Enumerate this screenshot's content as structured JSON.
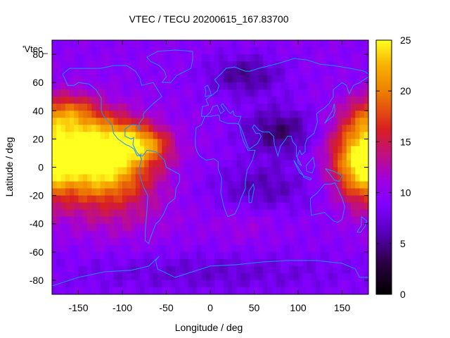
{
  "chart_data": {
    "type": "heatmap",
    "title": "VTEC / TECU 20200615_167.83700",
    "xlabel": "Longitude / deg",
    "ylabel": "Latitude / deg",
    "xlim": [
      -180,
      180
    ],
    "ylim": [
      -90,
      90
    ],
    "xticks": [
      -150,
      -100,
      -50,
      0,
      50,
      100,
      150
    ],
    "yticks": [
      -80,
      -60,
      -40,
      -20,
      0,
      20,
      40,
      60,
      80
    ],
    "colorbar": {
      "min": 0,
      "max": 25,
      "ticks": [
        0,
        5,
        10,
        15,
        20,
        25
      ],
      "palette": "gnuplot-heat"
    },
    "grid": false,
    "overlay": "coastlines",
    "stray_label": "'Vtec_",
    "colors": {
      "coastline": "#1e90ff",
      "frame": "#000000"
    },
    "field_peaks": [
      {
        "lon": -150,
        "lat": 15,
        "value": 21,
        "spread_lon": 45,
        "spread_lat": 18
      },
      {
        "lon": -120,
        "lat": -5,
        "value": 20,
        "spread_lon": 40,
        "spread_lat": 18
      },
      {
        "lon": -165,
        "lat": 38,
        "value": 16,
        "spread_lon": 25,
        "spread_lat": 10
      },
      {
        "lon": -70,
        "lat": 15,
        "value": 15,
        "spread_lon": 20,
        "spread_lat": 8
      },
      {
        "lon": -95,
        "lat": 20,
        "value": 15,
        "spread_lon": 25,
        "spread_lat": 10
      },
      {
        "lon": 170,
        "lat": 0,
        "value": 19,
        "spread_lon": 20,
        "spread_lat": 18
      },
      {
        "lon": -100,
        "lat": -40,
        "value": 11,
        "spread_lon": 50,
        "spread_lat": 12
      },
      {
        "lon": 40,
        "lat": -40,
        "value": 11,
        "spread_lon": 25,
        "spread_lat": 10
      },
      {
        "lon": 80,
        "lat": 25,
        "value": 4,
        "spread_lon": 30,
        "spread_lat": 12
      },
      {
        "lon": 40,
        "lat": 65,
        "value": 5,
        "spread_lon": 30,
        "spread_lat": 10
      },
      {
        "lon": 60,
        "lat": -15,
        "value": 6,
        "spread_lon": 40,
        "spread_lat": 12
      },
      {
        "lon": 0,
        "lat": -75,
        "value": 7,
        "spread_lon": 120,
        "spread_lat": 10
      }
    ],
    "field_base": 9.5
  }
}
